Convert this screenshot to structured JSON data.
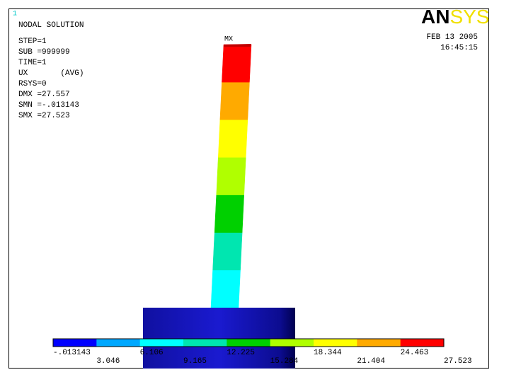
{
  "window_number": "1",
  "info": {
    "title": "NODAL SOLUTION",
    "lines": [
      "STEP=1",
      "SUB =999999",
      "TIME=1",
      "UX       (AVG)",
      "RSYS=0",
      "DMX =27.557",
      "SMN =-.013143",
      "SMX =27.523"
    ]
  },
  "logo": {
    "prefix": "AN",
    "suffix": "SYS"
  },
  "date": "FEB 13 2005",
  "time": "16:45:15",
  "max_marker": "MX",
  "legend": {
    "colors": [
      "#0000ff",
      "#00a8ff",
      "#00ffff",
      "#00e6b0",
      "#00d000",
      "#b0ff00",
      "#ffff00",
      "#ffaa00",
      "#ff0000"
    ],
    "labels": [
      "-.013143",
      "3.046",
      "6.106",
      "9.165",
      "12.225",
      "15.284",
      "18.344",
      "21.404",
      "24.463",
      "27.523"
    ]
  }
}
